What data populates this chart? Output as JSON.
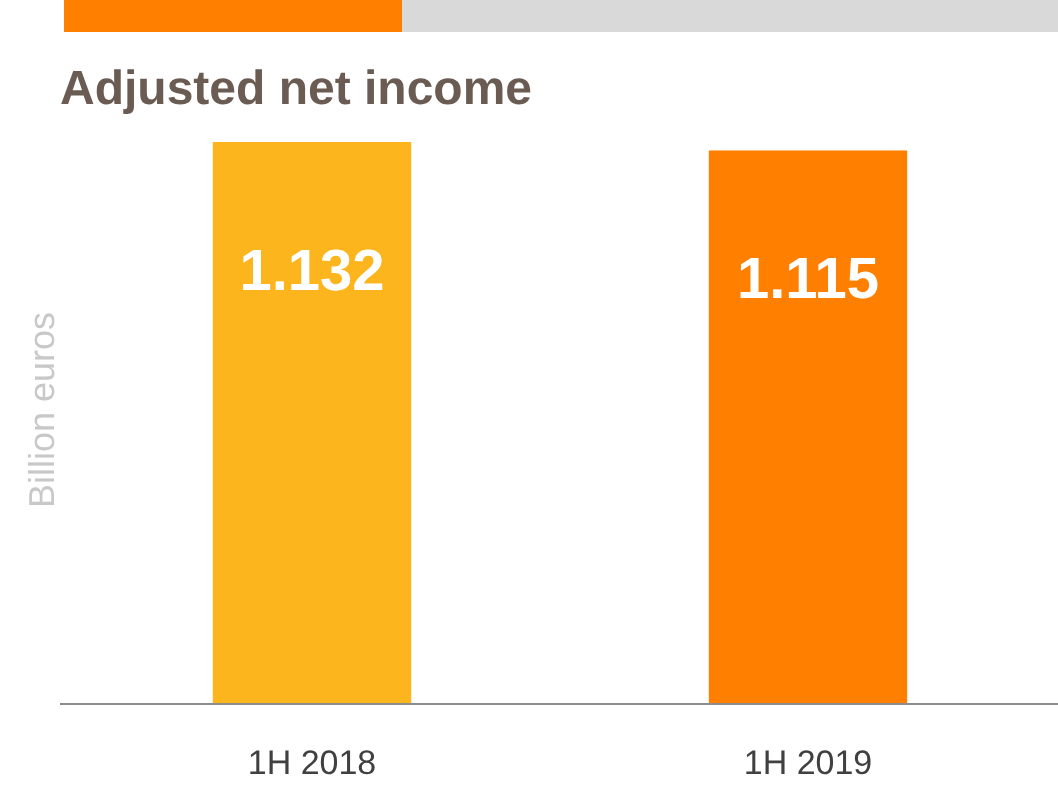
{
  "chart_data": {
    "type": "bar",
    "title": "Adjusted net income",
    "ylabel": "Billion euros",
    "categories": [
      "1H 2018",
      "1H 2019"
    ],
    "values": [
      1.132,
      1.115
    ],
    "colors": [
      "#fdb51e",
      "#ff8000"
    ],
    "data_labels": true
  }
}
